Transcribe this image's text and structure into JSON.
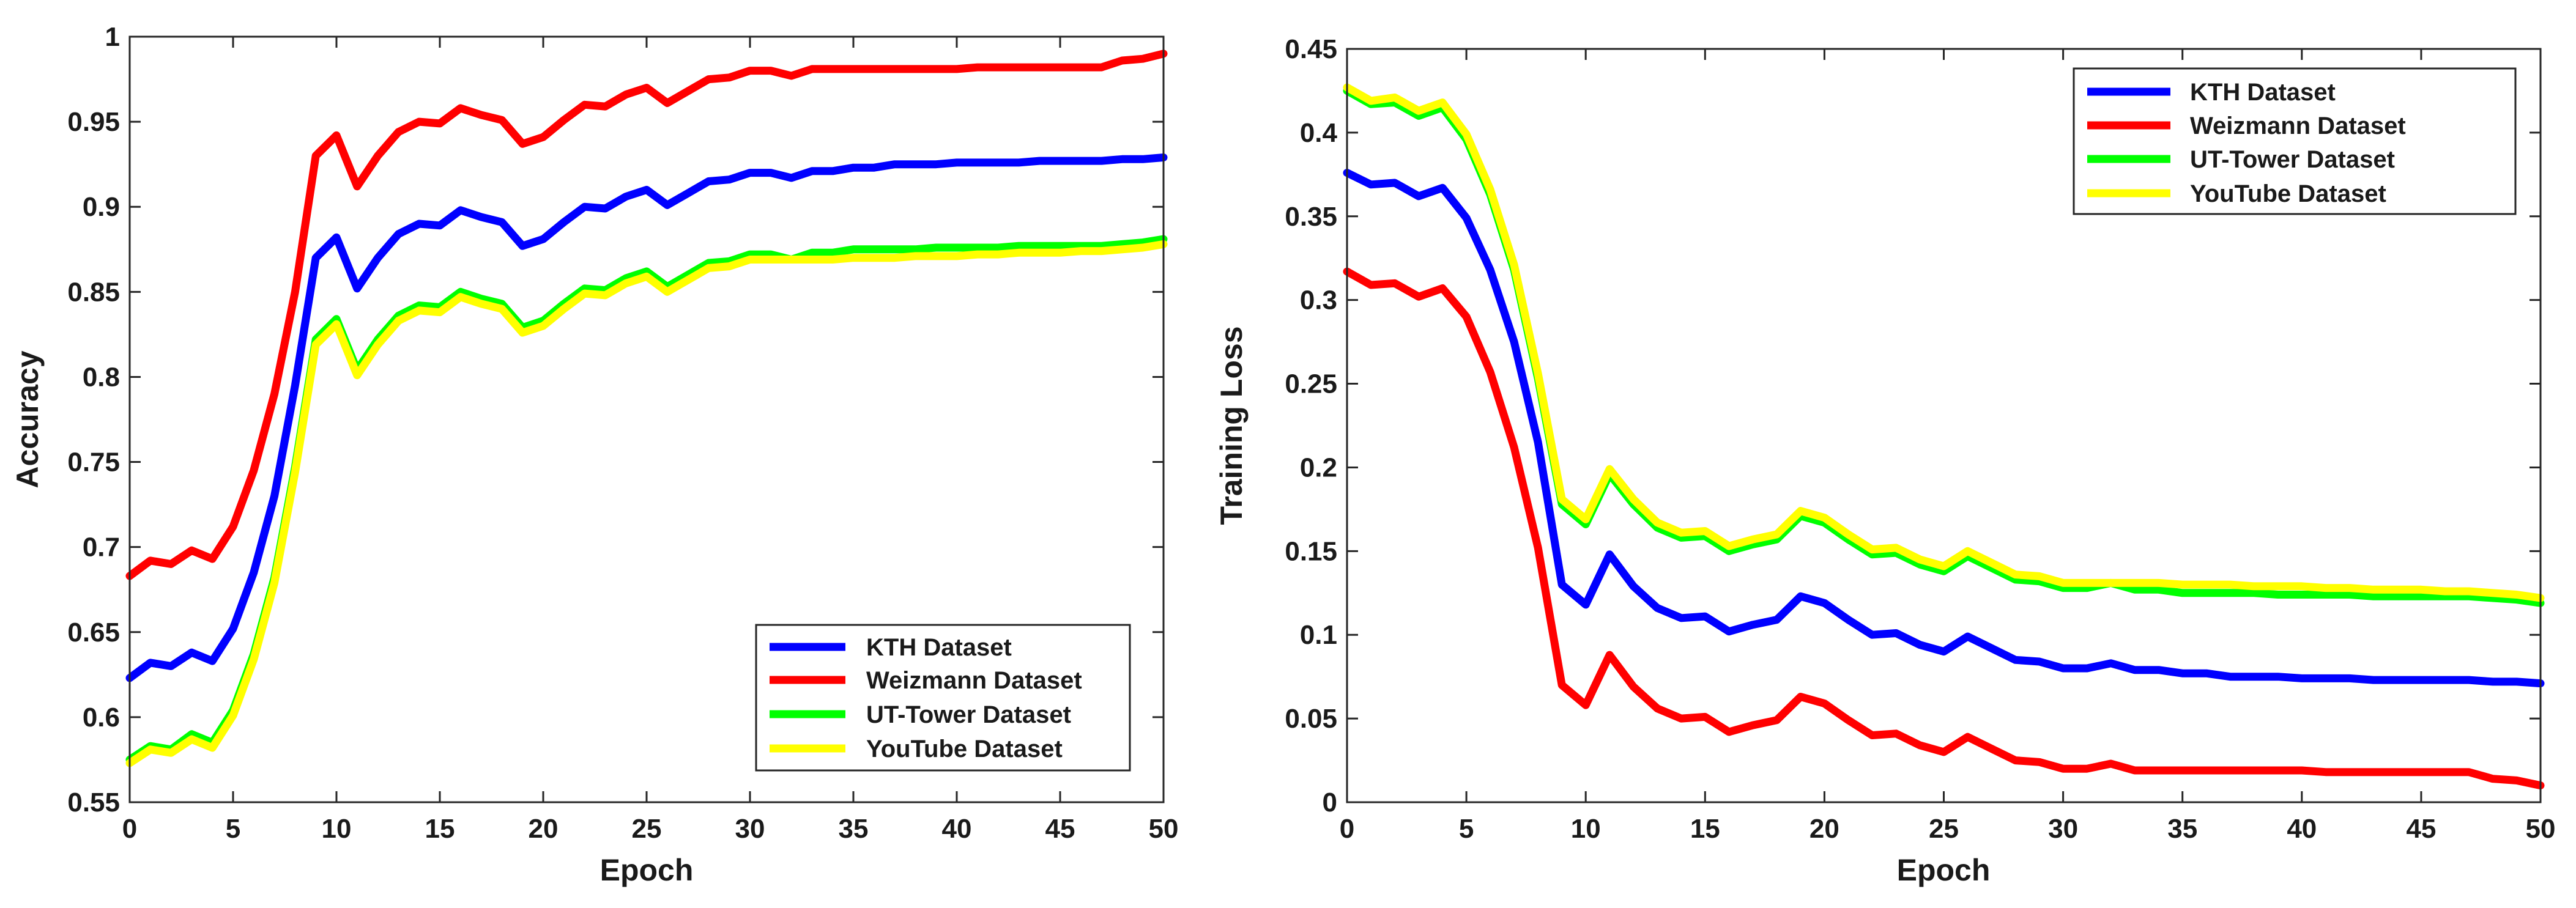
{
  "chart_data": [
    {
      "type": "line",
      "title": "",
      "xlabel": "Epoch",
      "ylabel": "Accuracy",
      "xlim": [
        0,
        50
      ],
      "ylim": [
        0.55,
        1
      ],
      "xticks": [
        0,
        5,
        10,
        15,
        20,
        25,
        30,
        35,
        40,
        45,
        50
      ],
      "xtick_labels": [
        "0",
        "5",
        "10",
        "15",
        "20",
        "25",
        "30",
        "35",
        "40",
        "45",
        "50"
      ],
      "yticks": [
        0.55,
        0.6,
        0.65,
        0.7,
        0.75,
        0.8,
        0.85,
        0.9,
        0.95,
        1
      ],
      "ytick_labels": [
        "0.55",
        "0.6",
        "0.65",
        "0.7",
        "0.75",
        "0.8",
        "0.85",
        "0.9",
        "0.95",
        "1"
      ],
      "grid": false,
      "legend_position": "bottom-right",
      "x": [
        0,
        1,
        2,
        3,
        4,
        5,
        6,
        7,
        8,
        9,
        10,
        11,
        12,
        13,
        14,
        15,
        16,
        17,
        18,
        19,
        20,
        21,
        22,
        23,
        24,
        25,
        26,
        27,
        28,
        29,
        30,
        31,
        32,
        33,
        34,
        35,
        36,
        37,
        38,
        39,
        40,
        41,
        42,
        43,
        44,
        45,
        46,
        47,
        48,
        49,
        50
      ],
      "series": [
        {
          "name": "KTH Dataset",
          "color": "#0000ff",
          "values": [
            0.623,
            0.632,
            0.63,
            0.638,
            0.633,
            0.652,
            0.685,
            0.73,
            0.795,
            0.87,
            0.882,
            0.852,
            0.87,
            0.884,
            0.89,
            0.889,
            0.898,
            0.894,
            0.891,
            0.877,
            0.881,
            0.891,
            0.9,
            0.899,
            0.906,
            0.91,
            0.901,
            0.908,
            0.915,
            0.916,
            0.92,
            0.92,
            0.917,
            0.921,
            0.921,
            0.923,
            0.923,
            0.925,
            0.925,
            0.925,
            0.926,
            0.926,
            0.926,
            0.926,
            0.927,
            0.927,
            0.927,
            0.927,
            0.928,
            0.928,
            0.929
          ]
        },
        {
          "name": "Weizmann Dataset",
          "color": "#ff0000",
          "values": [
            0.683,
            0.692,
            0.69,
            0.698,
            0.693,
            0.712,
            0.745,
            0.79,
            0.85,
            0.93,
            0.942,
            0.912,
            0.93,
            0.944,
            0.95,
            0.949,
            0.958,
            0.954,
            0.951,
            0.937,
            0.941,
            0.951,
            0.96,
            0.959,
            0.966,
            0.97,
            0.961,
            0.968,
            0.975,
            0.976,
            0.98,
            0.98,
            0.977,
            0.981,
            0.981,
            0.981,
            0.981,
            0.981,
            0.981,
            0.981,
            0.981,
            0.982,
            0.982,
            0.982,
            0.982,
            0.982,
            0.982,
            0.982,
            0.986,
            0.987,
            0.99
          ]
        },
        {
          "name": "UT-Tower Dataset",
          "color": "#00ff00",
          "values": [
            0.575,
            0.583,
            0.581,
            0.59,
            0.585,
            0.604,
            0.637,
            0.682,
            0.747,
            0.822,
            0.834,
            0.804,
            0.822,
            0.836,
            0.842,
            0.841,
            0.85,
            0.846,
            0.843,
            0.829,
            0.833,
            0.843,
            0.852,
            0.851,
            0.858,
            0.862,
            0.853,
            0.86,
            0.867,
            0.868,
            0.872,
            0.872,
            0.869,
            0.873,
            0.873,
            0.875,
            0.875,
            0.875,
            0.875,
            0.876,
            0.876,
            0.876,
            0.876,
            0.877,
            0.877,
            0.877,
            0.877,
            0.877,
            0.878,
            0.879,
            0.881
          ]
        },
        {
          "name": "YouTube Dataset",
          "color": "#ffff00",
          "values": [
            0.573,
            0.581,
            0.579,
            0.587,
            0.582,
            0.601,
            0.634,
            0.679,
            0.744,
            0.819,
            0.831,
            0.801,
            0.819,
            0.833,
            0.839,
            0.838,
            0.847,
            0.843,
            0.84,
            0.826,
            0.83,
            0.84,
            0.849,
            0.848,
            0.855,
            0.859,
            0.85,
            0.857,
            0.864,
            0.865,
            0.869,
            0.869,
            0.869,
            0.869,
            0.869,
            0.87,
            0.87,
            0.87,
            0.871,
            0.871,
            0.871,
            0.872,
            0.872,
            0.873,
            0.873,
            0.873,
            0.874,
            0.874,
            0.875,
            0.876,
            0.878
          ]
        }
      ]
    },
    {
      "type": "line",
      "title": "",
      "xlabel": "Epoch",
      "ylabel": "Training Loss",
      "xlim": [
        0,
        50
      ],
      "ylim": [
        0,
        0.45
      ],
      "xticks": [
        0,
        5,
        10,
        15,
        20,
        25,
        30,
        35,
        40,
        45,
        50
      ],
      "xtick_labels": [
        "0",
        "5",
        "10",
        "15",
        "20",
        "25",
        "30",
        "35",
        "40",
        "45",
        "50"
      ],
      "yticks": [
        0,
        0.05,
        0.1,
        0.15,
        0.2,
        0.25,
        0.3,
        0.35,
        0.4,
        0.45
      ],
      "ytick_labels": [
        "0",
        "0.05",
        "0.1",
        "0.15",
        "0.2",
        "0.25",
        "0.3",
        "0.35",
        "0.4",
        "0.45"
      ],
      "grid": false,
      "legend_position": "top-right",
      "x": [
        0,
        1,
        2,
        3,
        4,
        5,
        6,
        7,
        8,
        9,
        10,
        11,
        12,
        13,
        14,
        15,
        16,
        17,
        18,
        19,
        20,
        21,
        22,
        23,
        24,
        25,
        26,
        27,
        28,
        29,
        30,
        31,
        32,
        33,
        34,
        35,
        36,
        37,
        38,
        39,
        40,
        41,
        42,
        43,
        44,
        45,
        46,
        47,
        48,
        49,
        50
      ],
      "series": [
        {
          "name": "KTH Dataset",
          "color": "#0000ff",
          "values": [
            0.376,
            0.369,
            0.37,
            0.362,
            0.367,
            0.349,
            0.318,
            0.275,
            0.215,
            0.13,
            0.118,
            0.148,
            0.129,
            0.116,
            0.11,
            0.111,
            0.102,
            0.106,
            0.109,
            0.123,
            0.119,
            0.109,
            0.1,
            0.101,
            0.094,
            0.09,
            0.099,
            0.092,
            0.085,
            0.084,
            0.08,
            0.08,
            0.083,
            0.079,
            0.079,
            0.077,
            0.077,
            0.075,
            0.075,
            0.075,
            0.074,
            0.074,
            0.074,
            0.073,
            0.073,
            0.073,
            0.073,
            0.073,
            0.072,
            0.072,
            0.071
          ]
        },
        {
          "name": "Weizmann Dataset",
          "color": "#ff0000",
          "values": [
            0.317,
            0.309,
            0.31,
            0.302,
            0.307,
            0.29,
            0.257,
            0.212,
            0.152,
            0.07,
            0.058,
            0.088,
            0.069,
            0.056,
            0.05,
            0.051,
            0.042,
            0.046,
            0.049,
            0.063,
            0.059,
            0.049,
            0.04,
            0.041,
            0.034,
            0.03,
            0.039,
            0.032,
            0.025,
            0.024,
            0.02,
            0.02,
            0.023,
            0.019,
            0.019,
            0.019,
            0.019,
            0.019,
            0.019,
            0.019,
            0.019,
            0.018,
            0.018,
            0.018,
            0.018,
            0.018,
            0.018,
            0.018,
            0.014,
            0.013,
            0.01
          ]
        },
        {
          "name": "UT-Tower Dataset",
          "color": "#00ff00",
          "values": [
            0.425,
            0.417,
            0.418,
            0.41,
            0.415,
            0.396,
            0.363,
            0.318,
            0.253,
            0.178,
            0.166,
            0.196,
            0.178,
            0.164,
            0.158,
            0.159,
            0.15,
            0.154,
            0.157,
            0.171,
            0.167,
            0.157,
            0.148,
            0.149,
            0.142,
            0.138,
            0.147,
            0.14,
            0.133,
            0.132,
            0.128,
            0.128,
            0.131,
            0.127,
            0.127,
            0.125,
            0.125,
            0.125,
            0.125,
            0.124,
            0.124,
            0.124,
            0.124,
            0.123,
            0.123,
            0.123,
            0.123,
            0.123,
            0.122,
            0.121,
            0.119
          ]
        },
        {
          "name": "YouTube Dataset",
          "color": "#ffff00",
          "values": [
            0.427,
            0.419,
            0.421,
            0.413,
            0.418,
            0.399,
            0.366,
            0.321,
            0.256,
            0.181,
            0.169,
            0.199,
            0.181,
            0.167,
            0.161,
            0.162,
            0.153,
            0.157,
            0.16,
            0.174,
            0.17,
            0.16,
            0.151,
            0.152,
            0.145,
            0.141,
            0.15,
            0.143,
            0.136,
            0.135,
            0.131,
            0.131,
            0.131,
            0.131,
            0.131,
            0.13,
            0.13,
            0.13,
            0.129,
            0.129,
            0.129,
            0.128,
            0.128,
            0.127,
            0.127,
            0.127,
            0.126,
            0.126,
            0.125,
            0.124,
            0.122
          ]
        }
      ]
    }
  ]
}
